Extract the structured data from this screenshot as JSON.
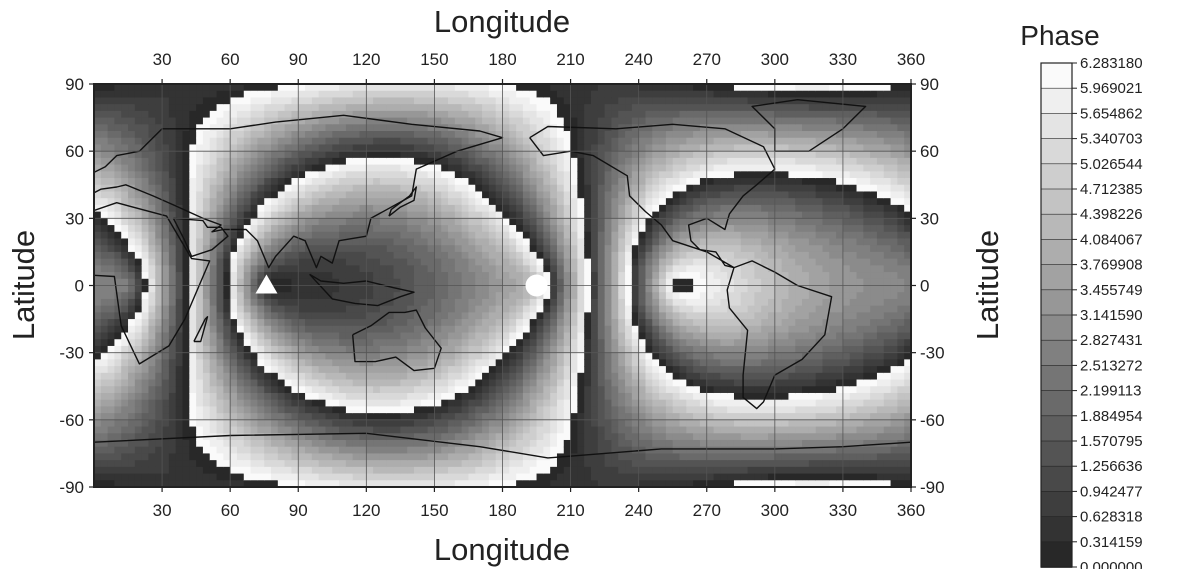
{
  "chart_data": {
    "type": "heatmap",
    "title": "",
    "xlabel": "Longitude",
    "ylabel": "Latitude",
    "xlim": [
      0,
      360
    ],
    "ylim": [
      -90,
      90
    ],
    "x_ticks": [
      30,
      60,
      90,
      120,
      150,
      180,
      210,
      240,
      270,
      300,
      330,
      360
    ],
    "y_ticks": [
      90,
      60,
      30,
      0,
      -30,
      -60,
      -90
    ],
    "grid": true,
    "colormap": "grayscale",
    "legend": {
      "title": "Phase",
      "placement": "right",
      "levels": [
        "6.283180",
        "5.969021",
        "5.654862",
        "5.340703",
        "5.026544",
        "4.712385",
        "4.398226",
        "4.084067",
        "3.769908",
        "3.455749",
        "3.141590",
        "2.827431",
        "2.513272",
        "2.199113",
        "1.884954",
        "1.570795",
        "1.256636",
        "0.942477",
        "0.628318",
        "0.314159",
        "0.000000"
      ]
    },
    "markers": [
      {
        "shape": "triangle",
        "lon": 76,
        "lat": 0,
        "color": "#ffffff"
      },
      {
        "shape": "circle",
        "lon": 195,
        "lat": 0,
        "color": "#ffffff"
      }
    ]
  }
}
